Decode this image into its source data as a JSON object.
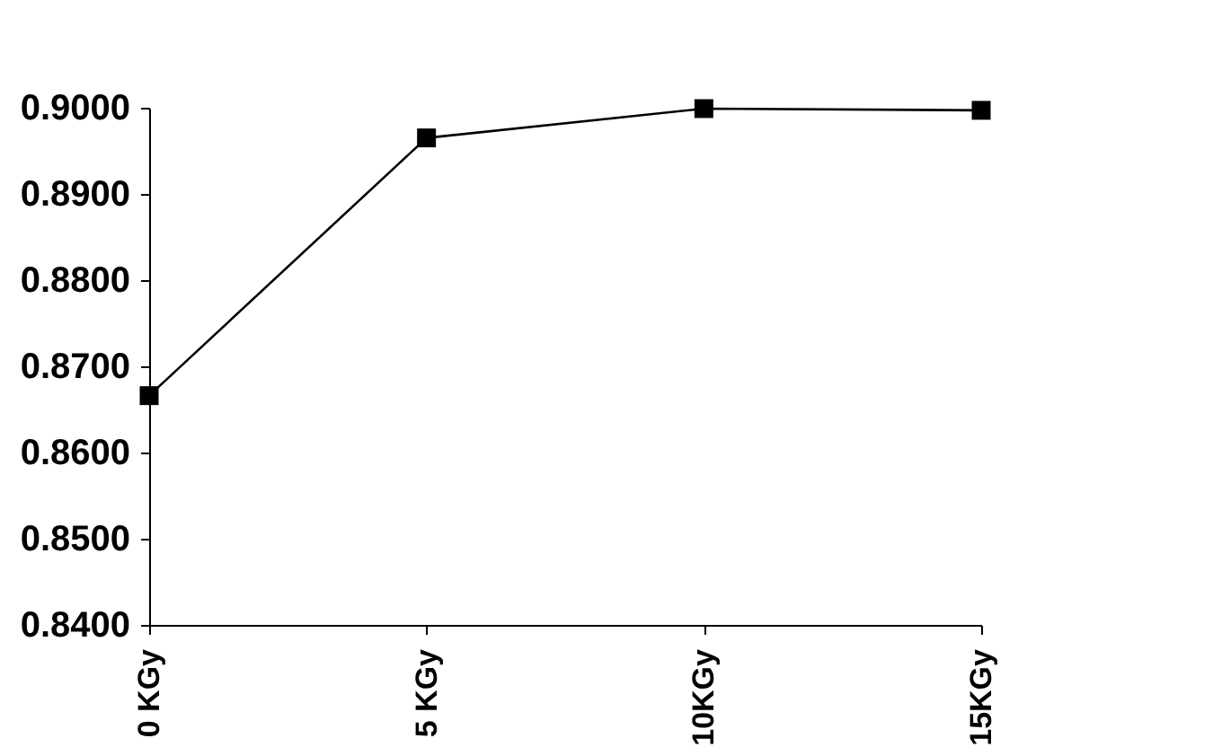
{
  "chart_data": {
    "type": "line",
    "categories": [
      "0 KGy",
      "5 KGy",
      "10KGy",
      "15KGy"
    ],
    "series": [
      {
        "color": "#000000",
        "values": [
          0.8666,
          0.8965,
          0.8999,
          0.8997
        ]
      }
    ],
    "marker": "square",
    "line_style": "solid",
    "grid": false,
    "ylim": [
      0.84,
      0.9
    ],
    "yticks": [
      {
        "value": 0.84,
        "label": "0.8400"
      },
      {
        "value": 0.85,
        "label": "0.8500"
      },
      {
        "value": 0.86,
        "label": "0.8600"
      },
      {
        "value": 0.87,
        "label": "0.8700"
      },
      {
        "value": 0.88,
        "label": "0.8800"
      },
      {
        "value": 0.89,
        "label": "0.8900"
      },
      {
        "value": 0.9,
        "label": "0.9000"
      }
    ]
  }
}
